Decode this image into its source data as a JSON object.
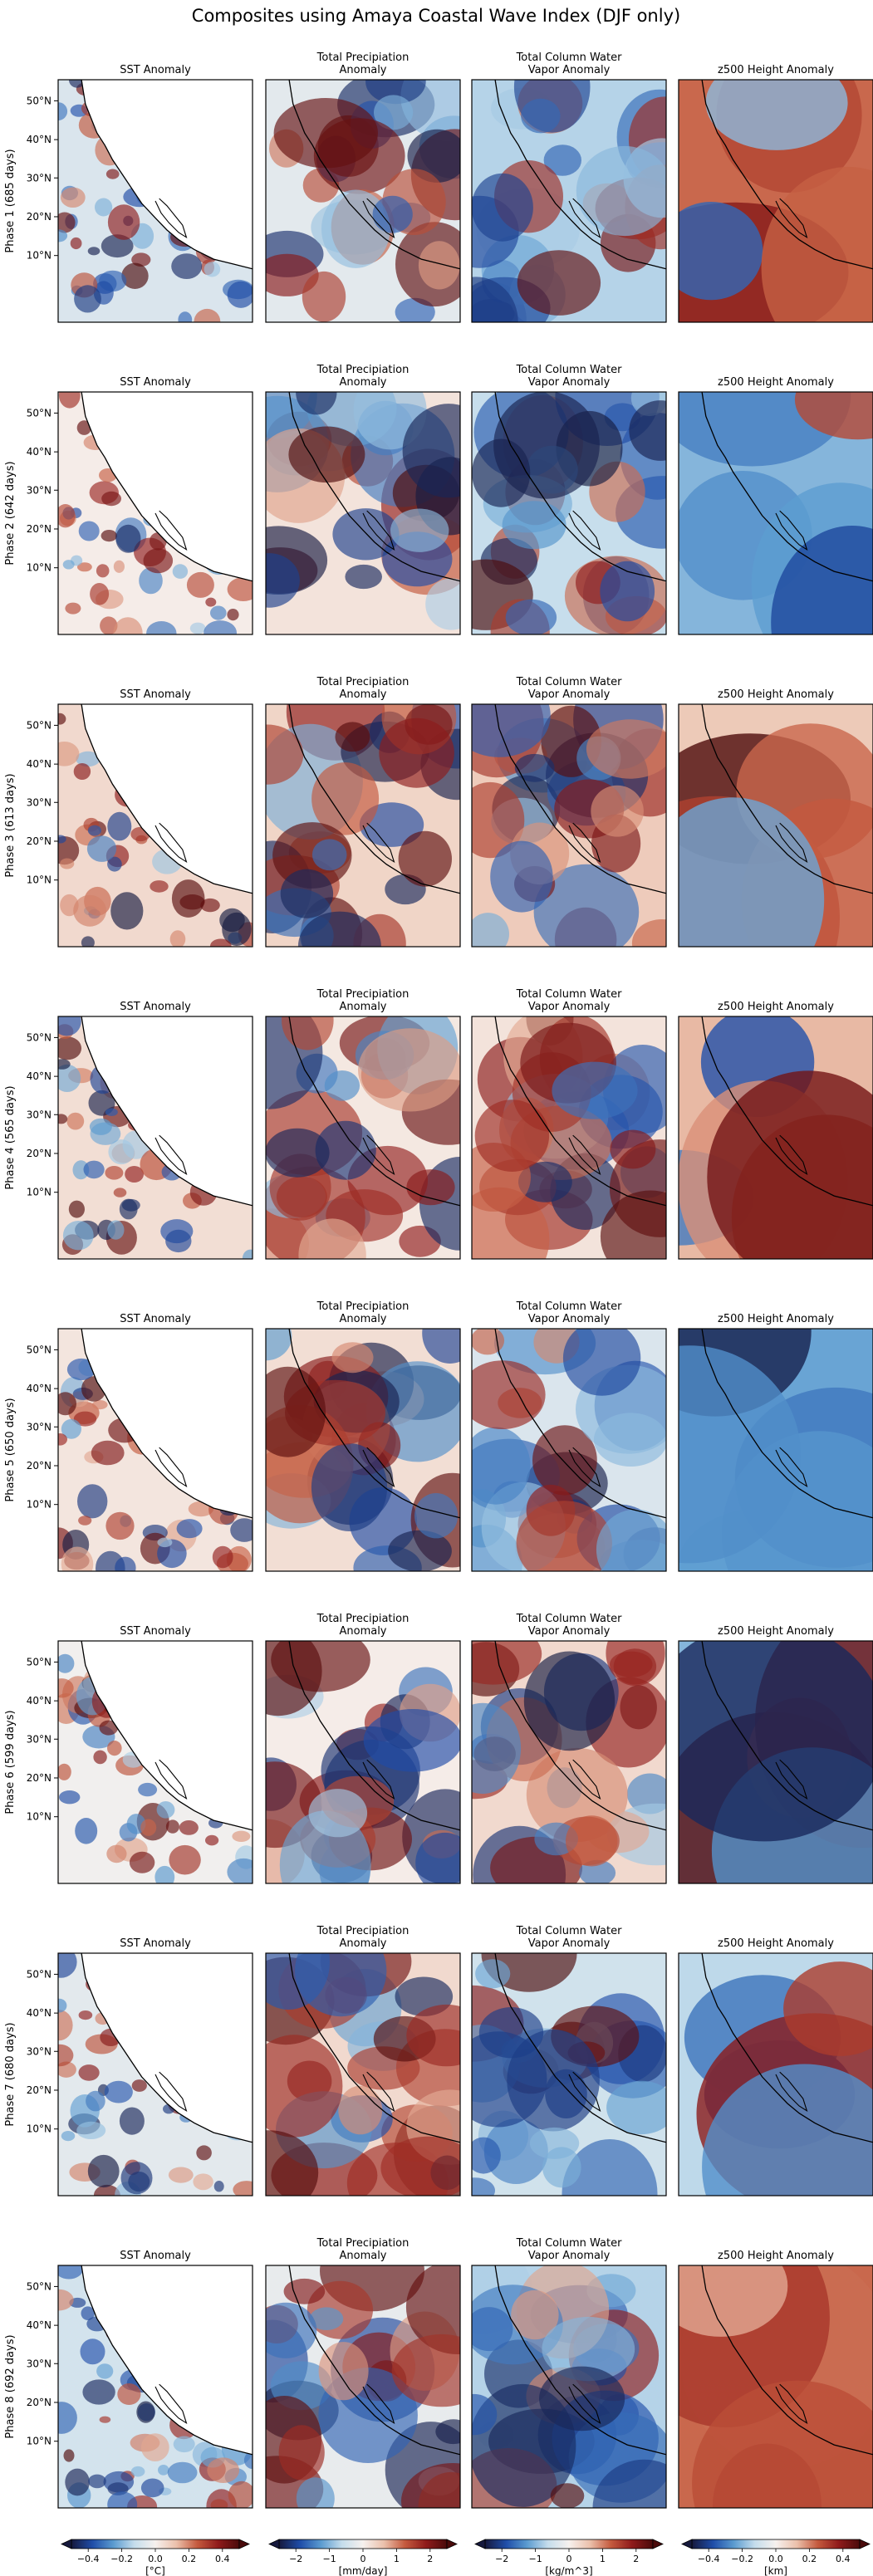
{
  "figure": {
    "title": "Composites using Amaya Coastal Wave Index (DJF only)"
  },
  "chart_data": {
    "type": "heatmap",
    "columns": [
      {
        "key": "sst",
        "title_lines": [
          "SST Anomaly"
        ],
        "colorbar": {
          "ticks": [
            "−0.4",
            "−0.2",
            "0.0",
            "0.2",
            "0.4"
          ],
          "units": "[°C]"
        }
      },
      {
        "key": "precip",
        "title_lines": [
          "Total Precipiation",
          "Anomaly"
        ],
        "colorbar": {
          "ticks": [
            "−2",
            "−1",
            "0",
            "1",
            "2"
          ],
          "units": "[mm/day]"
        }
      },
      {
        "key": "tcwv",
        "title_lines": [
          "Total Column Water",
          "Vapor Anomaly"
        ],
        "colorbar": {
          "ticks": [
            "−2",
            "−1",
            "0",
            "1",
            "2"
          ],
          "units": "[kg/m^3]"
        }
      },
      {
        "key": "z500",
        "title_lines": [
          "z500 Height Anomaly"
        ],
        "colorbar": {
          "ticks": [
            "−0.4",
            "−0.2",
            "0.0",
            "0.2",
            "0.4"
          ],
          "units": "[km]"
        }
      }
    ],
    "rows": [
      {
        "label": "Phase 1 (685 days)"
      },
      {
        "label": "Phase 2 (642 days)"
      },
      {
        "label": "Phase 3 (613 days)"
      },
      {
        "label": "Phase 4 (565 days)"
      },
      {
        "label": "Phase 5 (650 days)"
      },
      {
        "label": "Phase 6 (599 days)"
      },
      {
        "label": "Phase 7 (680 days)"
      },
      {
        "label": "Phase 8 (692 days)"
      }
    ],
    "lat_ticks": [
      "50°N",
      "40°N",
      "30°N",
      "20°N",
      "10°N"
    ],
    "colormap": [
      "#16193d",
      "#1f4da8",
      "#5b9bd0",
      "#c5ddec",
      "#f6f1ee",
      "#ebc0ab",
      "#c45a3e",
      "#8f1b1b",
      "#4a0a0a"
    ],
    "phase_values": [
      {
        "sst": -0.12,
        "precip": -0.4,
        "tcwv": -1.2,
        "z500": 0.35
      },
      {
        "sst": 0.02,
        "precip": 0.3,
        "tcwv": -1.0,
        "z500": -0.3
      },
      {
        "sst": 0.1,
        "precip": 0.6,
        "tcwv": 0.8,
        "z500": 0.15
      },
      {
        "sst": 0.08,
        "precip": 0.2,
        "tcwv": 0.3,
        "z500": 0.2
      },
      {
        "sst": 0.05,
        "precip": 0.4,
        "tcwv": -0.6,
        "z500": -0.35
      },
      {
        "sst": -0.02,
        "precip": 0.1,
        "tcwv": 0.5,
        "z500": -0.3
      },
      {
        "sst": -0.08,
        "precip": 0.5,
        "tcwv": -0.8,
        "z500": -0.2
      },
      {
        "sst": -0.15,
        "precip": -0.3,
        "tcwv": -1.2,
        "z500": 0.35
      }
    ]
  }
}
